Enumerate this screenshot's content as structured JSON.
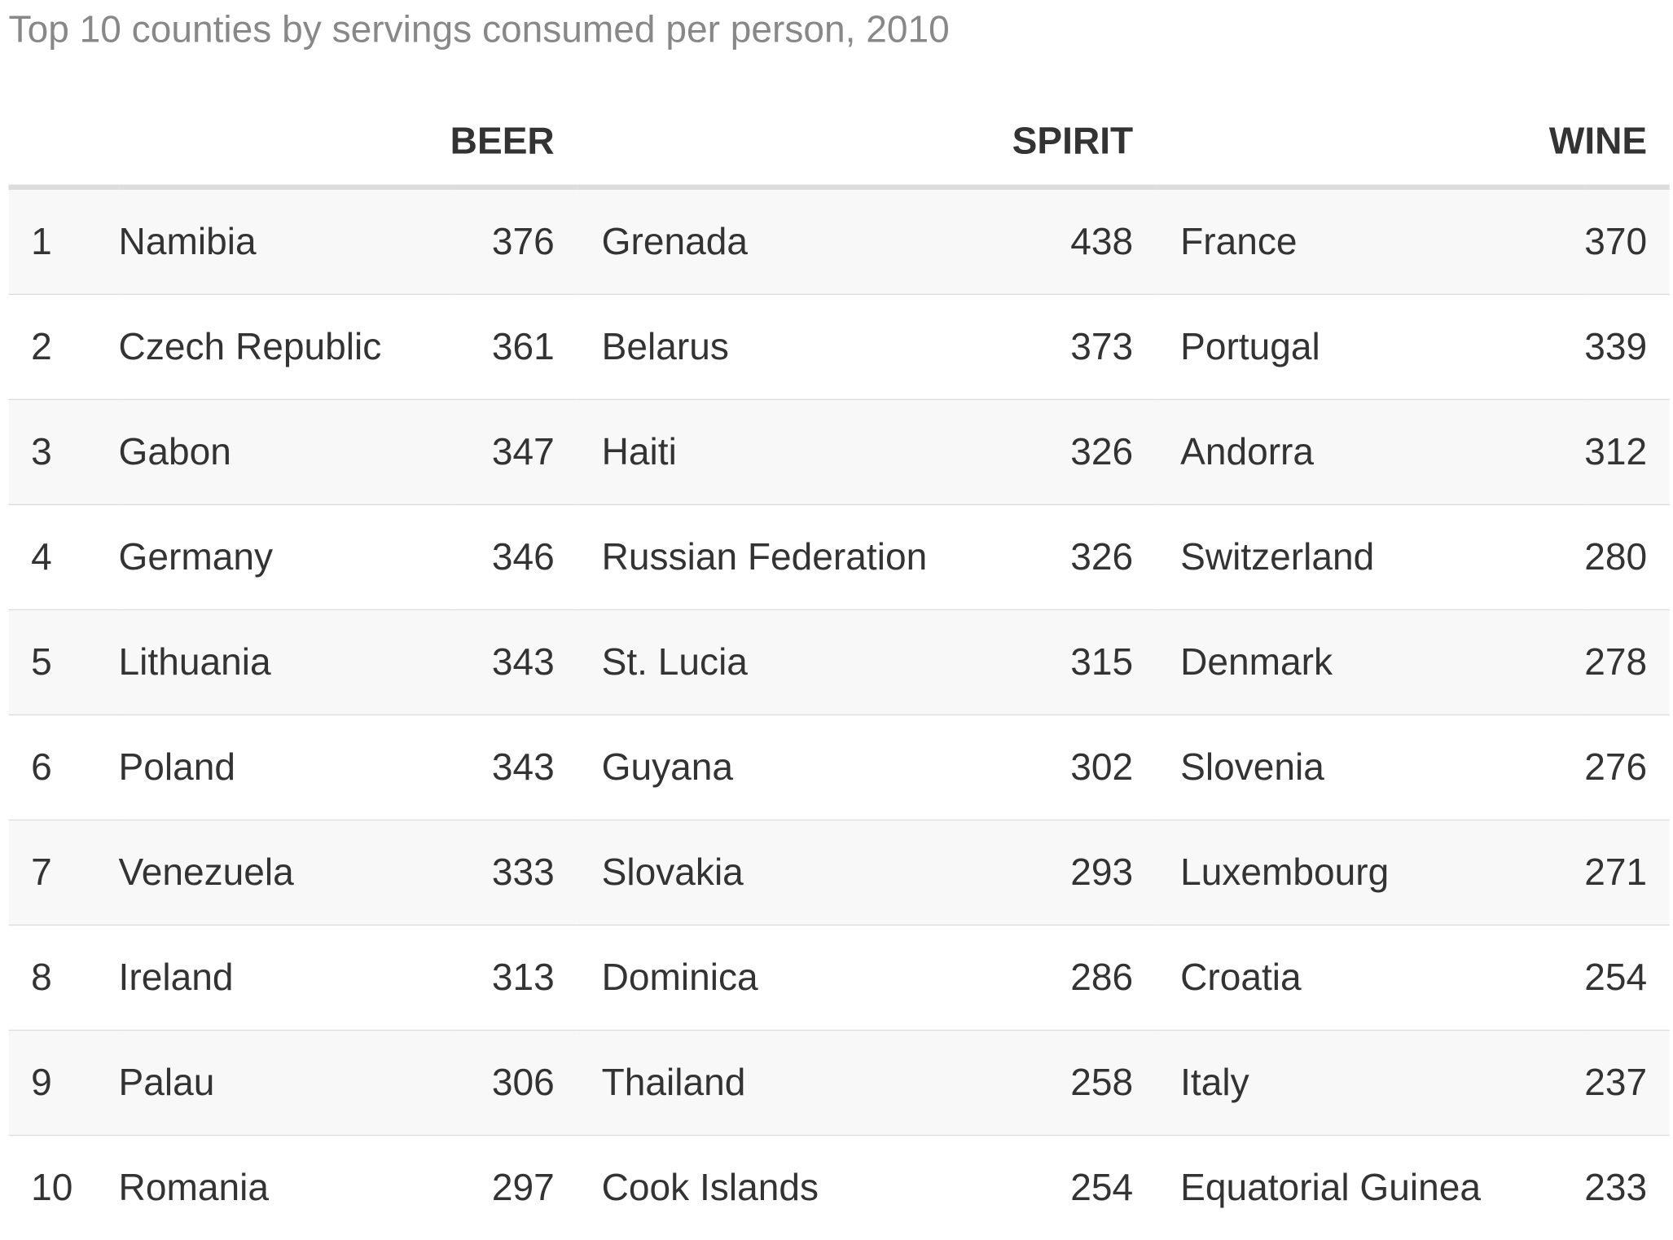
{
  "chart_data": {
    "type": "table",
    "title": "Top 10 counties by servings consumed per person, 2010",
    "columns": [
      "BEER",
      "SPIRIT",
      "WINE"
    ],
    "rows": [
      {
        "rank": "1",
        "beer_country": "Namibia",
        "beer": 376,
        "spirit_country": "Grenada",
        "spirit": 438,
        "wine_country": "France",
        "wine": 370
      },
      {
        "rank": "2",
        "beer_country": "Czech Republic",
        "beer": 361,
        "spirit_country": "Belarus",
        "spirit": 373,
        "wine_country": "Portugal",
        "wine": 339
      },
      {
        "rank": "3",
        "beer_country": "Gabon",
        "beer": 347,
        "spirit_country": "Haiti",
        "spirit": 326,
        "wine_country": "Andorra",
        "wine": 312
      },
      {
        "rank": "4",
        "beer_country": "Germany",
        "beer": 346,
        "spirit_country": "Russian Federation",
        "spirit": 326,
        "wine_country": "Switzerland",
        "wine": 280
      },
      {
        "rank": "5",
        "beer_country": "Lithuania",
        "beer": 343,
        "spirit_country": "St. Lucia",
        "spirit": 315,
        "wine_country": "Denmark",
        "wine": 278
      },
      {
        "rank": "6",
        "beer_country": "Poland",
        "beer": 343,
        "spirit_country": "Guyana",
        "spirit": 302,
        "wine_country": "Slovenia",
        "wine": 276
      },
      {
        "rank": "7",
        "beer_country": "Venezuela",
        "beer": 333,
        "spirit_country": "Slovakia",
        "spirit": 293,
        "wine_country": "Luxembourg",
        "wine": 271
      },
      {
        "rank": "8",
        "beer_country": "Ireland",
        "beer": 313,
        "spirit_country": "Dominica",
        "spirit": 286,
        "wine_country": "Croatia",
        "wine": 254
      },
      {
        "rank": "9",
        "beer_country": "Palau",
        "beer": 306,
        "spirit_country": "Thailand",
        "spirit": 258,
        "wine_country": "Italy",
        "wine": 237
      },
      {
        "rank": "10",
        "beer_country": "Romania",
        "beer": 297,
        "spirit_country": "Cook Islands",
        "spirit": 254,
        "wine_country": "Equatorial Guinea",
        "wine": 233
      }
    ]
  }
}
